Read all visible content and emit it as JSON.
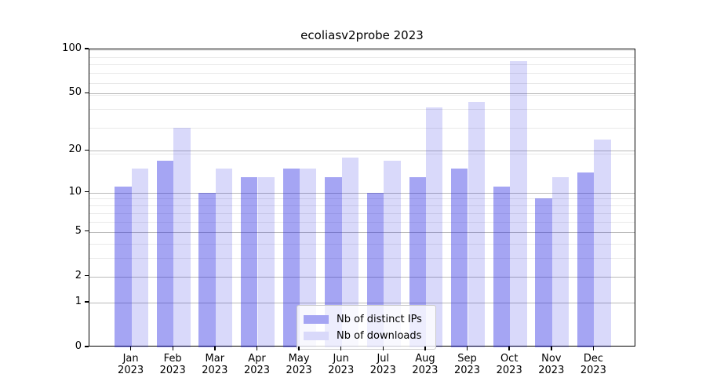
{
  "chart_data": {
    "type": "bar",
    "title": "ecoliasv2probe 2023",
    "months": [
      "Jan",
      "Feb",
      "Mar",
      "Apr",
      "May",
      "Jun",
      "Jul",
      "Aug",
      "Sep",
      "Oct",
      "Nov",
      "Dec"
    ],
    "year": "2023",
    "series": [
      {
        "name": "Nb of distinct IPs",
        "key": "ips",
        "color": "rgba(30,30,225,0.40)",
        "color_hex_on_white": "#a5a5f3",
        "values": [
          11,
          17,
          10,
          13,
          15,
          13,
          10,
          13,
          15,
          11,
          9,
          14
        ]
      },
      {
        "name": "Nb of downloads",
        "key": "downloads",
        "color": "rgba(30,30,225,0.17)",
        "color_hex_on_white": "#d9d9fa",
        "values": [
          15,
          29,
          15,
          13,
          15,
          18,
          17,
          40,
          44,
          83,
          13,
          24
        ]
      }
    ],
    "y_axis": {
      "scale": "log10(value+1)",
      "range": [
        0,
        100
      ],
      "ticks": [
        0,
        1,
        2,
        5,
        10,
        20,
        50,
        100
      ]
    },
    "x_axis": {
      "tick_label_format": "Month over Year, two lines"
    },
    "legend": {
      "position": "lower-center"
    },
    "grid": {
      "major_color": "#b9b9b9",
      "minor_color": "#e9e9e9"
    }
  }
}
